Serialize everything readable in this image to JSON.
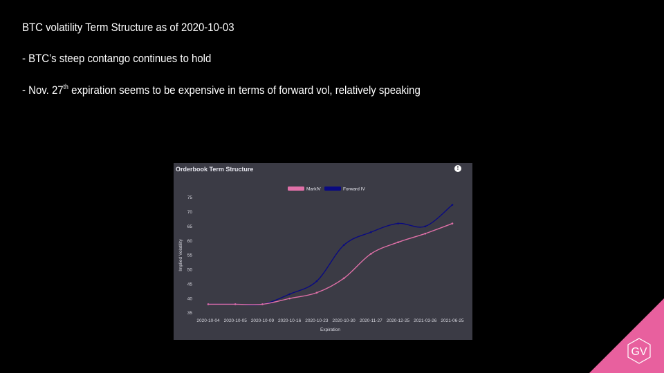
{
  "slide": {
    "title": "BTC volatility Term Structure as of 2020-10-03",
    "bullet1": "- BTC’s steep contango continues to hold",
    "bullet2_pre": "- Nov. 27",
    "bullet2_sup": "th",
    "bullet2_post": " expiration seems to be expensive  in terms of forward vol, relatively speaking"
  },
  "panel": {
    "title": "Orderbook Term Structure",
    "info_icon": "info-icon"
  },
  "logo": {
    "text": "GV",
    "color": "#e8609e"
  },
  "chart_data": {
    "type": "line",
    "categories": [
      "2020-10-04",
      "2020-10-05",
      "2020-10-09",
      "2020-10-16",
      "2020-10-23",
      "2020-10-30",
      "2020-11-27",
      "2020-12-25",
      "2021-03-26",
      "2021-06-25"
    ],
    "series": [
      {
        "name": "MarkIV",
        "color": "#e070a8",
        "values": [
          38,
          38,
          38,
          40,
          42,
          47,
          55.5,
          59.5,
          62.5,
          66
        ]
      },
      {
        "name": "Forward IV",
        "color": "#0a0a80",
        "values": [
          38,
          38,
          38,
          41.5,
          46,
          58.5,
          63,
          66,
          65,
          72.5
        ]
      }
    ],
    "xlabel": "Expiration",
    "ylabel": "Implied Volatility",
    "ylim": [
      35,
      75
    ],
    "yticks": [
      35,
      40,
      45,
      50,
      55,
      60,
      65,
      70,
      75
    ],
    "grid": false,
    "legend": "top-center"
  }
}
